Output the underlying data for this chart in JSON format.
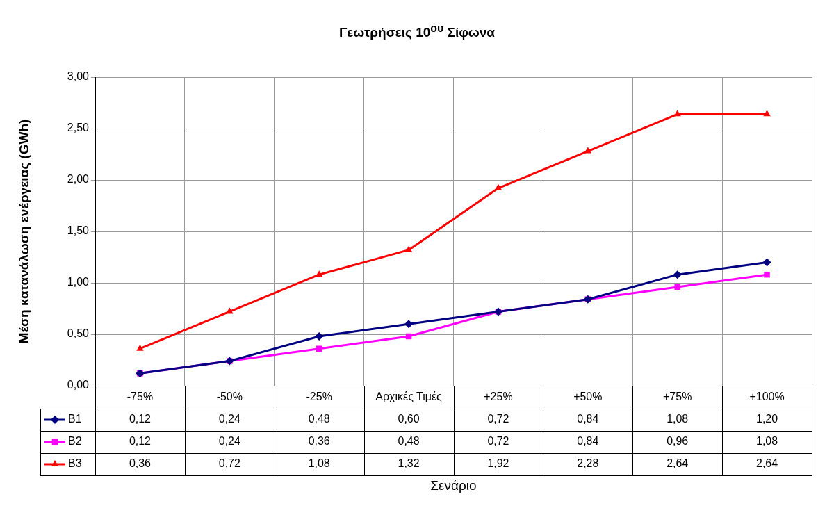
{
  "chart_data": {
    "type": "line",
    "title": "Γεωτρήσεις 10$^{ου}$ Σίφωνα",
    "ylabel": "Μέση κατανάλωση ενέργειας (GWh)",
    "annotations": [
      "Σενάριο"
    ],
    "categories": [
      "-75%",
      "-50%",
      "-25%",
      "Αρχικές Τιμές",
      "+25%",
      "+50%",
      "+75%",
      "+100%"
    ],
    "series": [
      {
        "name": "B1",
        "color": "#000080",
        "marker": "diamond",
        "values": [
          0.12,
          0.24,
          0.48,
          0.6,
          0.72,
          0.84,
          1.08,
          1.2
        ],
        "value_labels": [
          "0,12",
          "0,24",
          "0,48",
          "0,60",
          "0,72",
          "0,84",
          "1,08",
          "1,20"
        ]
      },
      {
        "name": "B2",
        "color": "#ff00ff",
        "marker": "square",
        "values": [
          0.12,
          0.24,
          0.36,
          0.48,
          0.72,
          0.84,
          0.96,
          1.08
        ],
        "value_labels": [
          "0,12",
          "0,24",
          "0,36",
          "0,48",
          "0,72",
          "0,84",
          "0,96",
          "1,08"
        ]
      },
      {
        "name": "B3",
        "color": "#ff0000",
        "marker": "triangle",
        "values": [
          0.36,
          0.72,
          1.08,
          1.32,
          1.92,
          2.28,
          2.64,
          2.64
        ],
        "value_labels": [
          "0,36",
          "0,72",
          "1,08",
          "1,32",
          "1,92",
          "2,28",
          "2,64",
          "2,64"
        ]
      }
    ],
    "ylim": [
      0,
      3
    ],
    "yticks": [
      {
        "value": 0,
        "label": "0,00"
      },
      {
        "value": 0.5,
        "label": "0,50"
      },
      {
        "value": 1,
        "label": "1,00"
      },
      {
        "value": 1.5,
        "label": "1,50"
      },
      {
        "value": 2,
        "label": "2,00"
      },
      {
        "value": 2.5,
        "label": "2,50"
      },
      {
        "value": 3,
        "label": "3,00"
      }
    ],
    "grid": true,
    "legend": "bottom left",
    "line_style": "solid"
  }
}
